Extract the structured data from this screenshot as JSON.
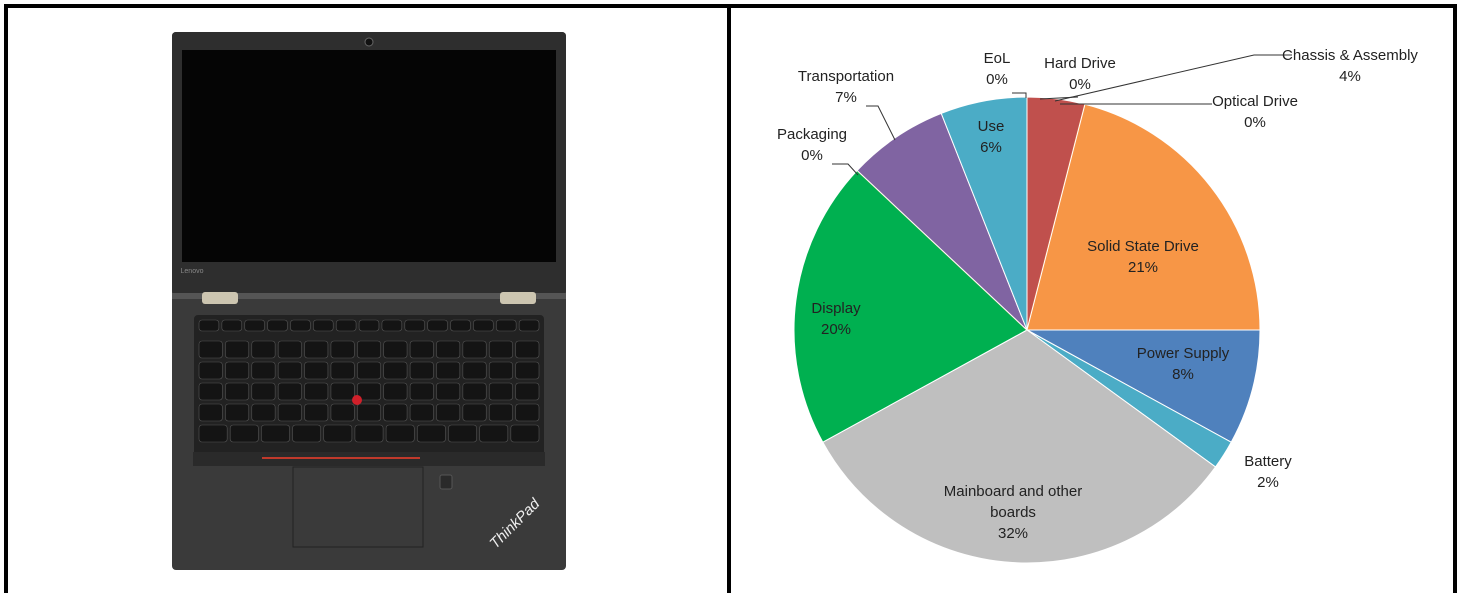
{
  "laptop": {
    "bezel_logo": "Lenovo",
    "logo": "ThinkPad"
  },
  "chart_data": {
    "type": "pie",
    "categories": [
      "EoL",
      "Hard Drive",
      "Chassis & Assembly",
      "Optical Drive",
      "Solid State Drive",
      "Power Supply",
      "Battery",
      "Mainboard and other boards",
      "Display",
      "Packaging",
      "Transportation",
      "Use"
    ],
    "values": [
      0,
      0,
      4,
      0,
      21,
      8,
      2,
      32,
      20,
      0,
      7,
      6
    ],
    "value_labels": [
      "0%",
      "0%",
      "4%",
      "0%",
      "21%",
      "8%",
      "2%",
      "32%",
      "20%",
      "0%",
      "7%",
      "6%"
    ],
    "colors": [
      "#e46c0a",
      "#c0504d",
      "#c0504d",
      "#f79646",
      "#f79646",
      "#4f81bd",
      "#4bacc6",
      "#bfbfbf",
      "#00b050",
      "#9bbb59",
      "#8064a2",
      "#4bacc6"
    ]
  }
}
